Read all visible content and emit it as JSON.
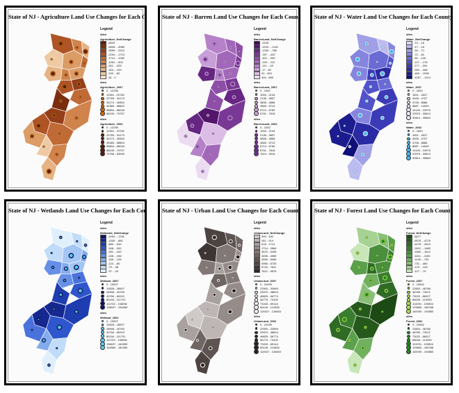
{
  "panels": [
    {
      "id": "agriculture",
      "title": "State of NJ - Agriculture Land Use Changes for Each County",
      "field": "Agriculture_NetChange",
      "palette": [
        "#5e1f05",
        "#7a2e0e",
        "#953f19",
        "#ae5425",
        "#c06a36",
        "#d0834b",
        "#dc9c66",
        "#e6b384",
        "#eecaa4",
        "#f6e0c8"
      ],
      "classes": [
        "-6529",
        "-6528 - -3980",
        "-3999 - -2513",
        "-2234 - -1713",
        "-1714 - -1062",
        "-1061 - -602",
        "-601 - -325",
        "-324 - -193",
        "-192 - -82",
        "-81 - 0"
      ],
      "dot_color_2007": "#d06a10",
      "dot_color_2002": "#5a1a02",
      "sizes_2007_title": "Agriculture_2007",
      "sizes_2007": [
        "0 - 12295",
        "12301 - 22782",
        "22783 - 34173",
        "34174 - 45364",
        "45365 - 58803",
        "58804 - 88248",
        "88249 - 79757"
      ],
      "sizes_2002_title": "Agriculture_2002",
      "sizes_2002": [
        "0 - 12295",
        "12301 - 22782",
        "22783 - 34173",
        "34174 - 45364",
        "45365 - 58803",
        "58804 - 88248",
        "88249 - 79757",
        "79758 - 83095"
      ]
    },
    {
      "id": "barren",
      "title": "State of NJ - Barren Land Use Changes for Each County",
      "field": "BarrenLand_NetChange",
      "palette": [
        "#3f0a52",
        "#52166a",
        "#662682",
        "#7a3896",
        "#8e4ea8",
        "#a267b9",
        "#b582c9",
        "#c89fd8",
        "#dbbde6",
        "#ecdcf2"
      ],
      "classes": [
        "-2226",
        "-2223 - -1341",
        "-1340 - -788",
        "-787 - -432",
        "-431 - -250",
        "-249 - -112",
        "-111 - -18",
        "-17 - 50",
        "51 - 403",
        "404 - 855"
      ],
      "dot_color_2007": "#c89fd8",
      "dot_color_2002": "#7a2a9a",
      "sizes_2007_title": "BarrenLand_2007",
      "sizes_2007": [
        "0 - 1052",
        "1053 - 2134",
        "2135 - 3807",
        "3808 - 4868",
        "4869 - 5713",
        "5714 - 6760",
        "6761 - 7818"
      ],
      "sizes_2002_title": "BarrenLand_2002",
      "sizes_2002": [
        "0 - 1052",
        "1053 - 2134",
        "2135 - 3807",
        "3808 - 4868",
        "4869 - 5713",
        "5714 - 6760",
        "6761 - 7818",
        "7819 - 9016"
      ]
    },
    {
      "id": "water",
      "title": "State of NJ - Water Land Use Changes for Each County",
      "field": "Water_NetChange",
      "palette": [
        "#d8d8f6",
        "#bcbcf0",
        "#a0a0e8",
        "#8585e0",
        "#6b6bd6",
        "#5252ca",
        "#3b3bb8",
        "#2a2aa4",
        "#1c1c8e",
        "#101078"
      ],
      "classes": [
        "-13 - -16",
        "-17 - -15",
        "-16 - -71",
        "-72 - -81",
        "-82 - -126",
        "-127 - -176",
        "-177 - -391",
        "-392 - -468",
        "-469 - -1056",
        "-1057 - -1214"
      ],
      "dot_color_2007": "#e6e6fa",
      "dot_color_2002": "#3fb6f2",
      "sizes_2007_title": "Water_2007",
      "sizes_2007": [
        "0 - 1820",
        "1821 - 2627",
        "2628 - 4707",
        "4708 - 8886",
        "8887 - 14099",
        "14100 - 23975",
        "23976 - 30813",
        "30814 - 35884"
      ],
      "sizes_2002_title": "Water_2002",
      "sizes_2002": [
        "0 - 1820",
        "1821 - 2627",
        "2628 - 4707",
        "4708 - 8886",
        "8887 - 14099",
        "14100 - 23975",
        "23976 - 30813",
        "30814 - 35884"
      ]
    },
    {
      "id": "wetlands",
      "title": "State of NJ - Wetlands Land Use Changes for Each County",
      "field": "Wetlands_NetChange",
      "palette": [
        "#0c1466",
        "#152890",
        "#1e3db0",
        "#2f56cc",
        "#4a72dc",
        "#6690e6",
        "#84abee",
        "#a3c6f4",
        "#c1dcf8",
        "#dff0fc"
      ],
      "classes": [
        "-3254 - -1331",
        "-1330 - -881",
        "-880 - -549",
        "-548 - -392",
        "-391 - -249",
        "-248 - -156",
        "-155 - -125",
        "-124 - -80",
        "-79 - -38",
        "-37 - -20"
      ],
      "dot_color_2007": "#0c1466",
      "dot_color_2002": "#58c8e8",
      "sizes_2007_title": "Wetland_2007",
      "sizes_2007": [
        "0 - 19527",
        "19528 - 28907",
        "28908 - 40783",
        "40784 - 80243",
        "80244 - 111701",
        "111702 - 138036",
        "138037 - 164559"
      ],
      "sizes_2002_title": "Wetland_2002",
      "sizes_2002": [
        "0 - 19527",
        "19528 - 28907",
        "28908 - 40783",
        "40784 - 80243",
        "80244 - 111701",
        "111702 - 138036",
        "138037 - 164559",
        "164560 - 182359"
      ]
    },
    {
      "id": "urban",
      "title": "State of NJ - Urban Land Use Changes for Each County",
      "field": "UrbanLand_NetChange",
      "palette": [
        "#cfc9c7",
        "#bdb6b4",
        "#a9a19f",
        "#958c8a",
        "#827876",
        "#6f6563",
        "#5e5452",
        "#4d4442",
        "#3d3533",
        "#2e2725"
      ],
      "classes": [
        "393 - 450",
        "451 - 914",
        "915 - 1713",
        "1714 - 2869",
        "2870 - 3495",
        "3496 - 4589",
        "4590 - 5965",
        "5966 - 6739",
        "6740 - 7811",
        "7812 - 9876"
      ],
      "dot_color_2007": "#f2efee",
      "dot_color_2002": "#2a2220",
      "sizes_2007_title": "UrbanLand_2007",
      "sizes_2007": [
        "0 - 22499",
        "22500 - 33969",
        "33970 - 48824",
        "48825 - 56774",
        "56775 - 73432",
        "73433 - 89144",
        "89145 - 110536",
        "110537 - 134653"
      ],
      "sizes_2002_title": "UrbanLand_2002",
      "sizes_2002": [
        "0 - 22499",
        "22500 - 33969",
        "33970 - 48824",
        "48825 - 56774",
        "56775 - 73432",
        "73433 - 89144",
        "89145 - 110536",
        "110537 - 134653"
      ]
    },
    {
      "id": "forest",
      "title": "State of NJ - Forest Land Use Changes for Each County",
      "field": "Forest_NetChange",
      "palette": [
        "#1c4a14",
        "#25591b",
        "#2f6b24",
        "#3b7d2e",
        "#4a8f3b",
        "#5ba04b",
        "#70b05f",
        "#89c077",
        "#a6d294",
        "#c8e6b8"
      ],
      "classes": [
        "-6577",
        "-6576 - -4276",
        "-4275 - -2613",
        "-2612 - -1883",
        "-1882 - -1612",
        "-1611 - -1150",
        "-1149 - -732",
        "-731 - -480",
        "-479 - -128",
        "-127 - -79"
      ],
      "dot_color_2007": "#a8e04a",
      "dot_color_2002": "#1f8a1f",
      "sizes_2007_title": "Forest_2007",
      "sizes_2007": [
        "0 - 23502",
        "23503 - 48788",
        "48789 - 73021",
        "73022 - 86027",
        "86028 - 113290",
        "113291 - 129804",
        "129805 - 165768",
        "165769 - 193850"
      ],
      "sizes_2002_title": "Forest_2002",
      "sizes_2002": [
        "0 - 23502",
        "23503 - 48788",
        "48789 - 73021",
        "73022 - 86027",
        "86028 - 113290",
        "113291 - 129804",
        "129805 - 165768",
        "165769 - 193850"
      ]
    }
  ],
  "map_values": {
    "agriculture": [
      3,
      5,
      7,
      8,
      6,
      4,
      7,
      5,
      6,
      3,
      2,
      4,
      1,
      2,
      5,
      3,
      4,
      6,
      8,
      5,
      7
    ],
    "barren": [
      6,
      5,
      4,
      7,
      5,
      3,
      2,
      6,
      5,
      4,
      3,
      2,
      4,
      1,
      3,
      2,
      8,
      9,
      6,
      5,
      9
    ],
    "water": [
      2,
      1,
      3,
      3,
      4,
      5,
      3,
      6,
      7,
      5,
      4,
      6,
      5,
      3,
      6,
      8,
      7,
      8,
      9,
      2,
      1
    ],
    "wetlands": [
      9,
      8,
      9,
      8,
      7,
      6,
      5,
      6,
      7,
      5,
      4,
      3,
      2,
      1,
      2,
      1,
      3,
      4,
      6,
      8,
      9
    ],
    "urban": [
      7,
      6,
      5,
      8,
      4,
      3,
      4,
      2,
      3,
      5,
      4,
      3,
      2,
      1,
      3,
      0,
      1,
      2,
      5,
      6,
      7
    ],
    "forest": [
      8,
      7,
      5,
      9,
      4,
      3,
      5,
      2,
      4,
      6,
      3,
      2,
      7,
      1,
      0,
      3,
      1,
      2,
      5,
      6,
      9
    ]
  },
  "legend_labels": {
    "legend": "Legend",
    "sites": "sites"
  }
}
